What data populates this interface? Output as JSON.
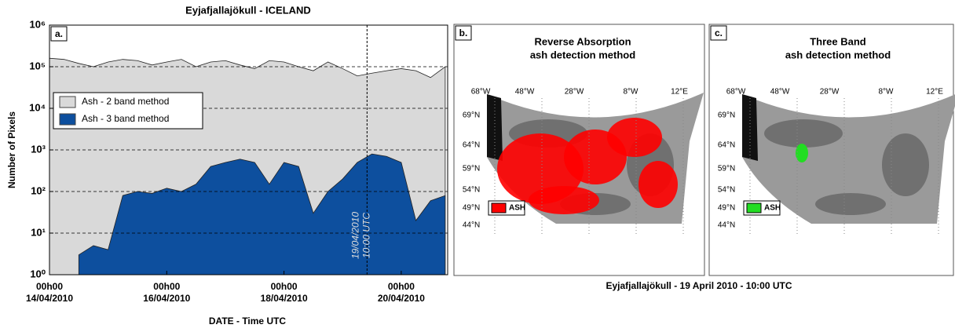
{
  "chart_data": {
    "type": "area",
    "title": "Eyjafjallajökull - ICELAND",
    "panel_label": "a.",
    "x_label": "DATE - Time UTC",
    "y_label": "Number of Pixels",
    "log_scale": true,
    "legend_loc": "center left",
    "x": [
      "2010-04-14T00:00",
      "2010-04-14T06:00",
      "2010-04-14T12:00",
      "2010-04-14T18:00",
      "2010-04-15T00:00",
      "2010-04-15T06:00",
      "2010-04-15T12:00",
      "2010-04-15T18:00",
      "2010-04-16T00:00",
      "2010-04-16T06:00",
      "2010-04-16T12:00",
      "2010-04-16T18:00",
      "2010-04-17T00:00",
      "2010-04-17T06:00",
      "2010-04-17T12:00",
      "2010-04-17T18:00",
      "2010-04-18T00:00",
      "2010-04-18T06:00",
      "2010-04-18T12:00",
      "2010-04-18T18:00",
      "2010-04-19T00:00",
      "2010-04-19T06:00",
      "2010-04-19T12:00",
      "2010-04-19T18:00",
      "2010-04-20T00:00",
      "2010-04-20T06:00",
      "2010-04-20T12:00",
      "2010-04-20T18:00"
    ],
    "series": [
      {
        "name": "Ash - 2 band method",
        "color": "#d9d9d9",
        "values": [
          160000,
          150000,
          120000,
          100000,
          130000,
          150000,
          140000,
          110000,
          130000,
          150000,
          100000,
          130000,
          140000,
          110000,
          90000,
          140000,
          130000,
          100000,
          80000,
          130000,
          90000,
          60000,
          70000,
          80000,
          90000,
          80000,
          55000,
          100000
        ]
      },
      {
        "name": "Ash - 3 band method",
        "color": "#0d4f9e",
        "values": [
          null,
          null,
          3,
          5,
          4,
          80,
          100,
          90,
          120,
          100,
          150,
          400,
          500,
          600,
          500,
          150,
          500,
          400,
          30,
          100,
          200,
          500,
          800,
          700,
          500,
          20,
          60,
          80
        ]
      }
    ],
    "xlim": [
      "2010-04-14T00:00",
      "2010-04-20T19:00"
    ],
    "xticks": [
      {
        "value": "2010-04-14T00:00",
        "label": "00h00\n14/04/2010"
      },
      {
        "value": "2010-04-16T00:00",
        "label": "00h00\n16/04/2010"
      },
      {
        "value": "2010-04-18T00:00",
        "label": "00h00\n18/04/2010"
      },
      {
        "value": "2010-04-20T00:00",
        "label": "00h00\n20/04/2010"
      }
    ],
    "ylim": [
      1,
      1000000
    ],
    "yticks": [
      {
        "value": 1,
        "label": "10⁰"
      },
      {
        "value": 10,
        "label": "10¹"
      },
      {
        "value": 100,
        "label": "10²"
      },
      {
        "value": 1000,
        "label": "10³"
      },
      {
        "value": 10000,
        "label": "10⁴"
      },
      {
        "value": 100000,
        "label": "10⁵"
      },
      {
        "value": 1000000,
        "label": "10⁶"
      }
    ],
    "grid": true,
    "marker": {
      "x": "2010-04-19T10:00",
      "line1": "19/04/2010",
      "line2": "10:00 UTC"
    }
  },
  "panels": [
    {
      "label": "b.",
      "title1": "Reverse Absorption",
      "title2": "ash detection method",
      "ash_label": "ASH",
      "ash_color": "#ff0000"
    },
    {
      "label": "c.",
      "title1": "Three Band",
      "title2": "ash detection method",
      "ash_label": "ASH",
      "ash_color": "#22dd22"
    }
  ],
  "map_lons": [
    "68°W",
    "48°W",
    "28°W",
    "8°W",
    "12°E"
  ],
  "map_lats": [
    "69°N",
    "64°N",
    "59°N",
    "54°N",
    "49°N",
    "44°N"
  ],
  "caption": "Eyjafjallajökull - 19 April 2010 - 10:00 UTC"
}
